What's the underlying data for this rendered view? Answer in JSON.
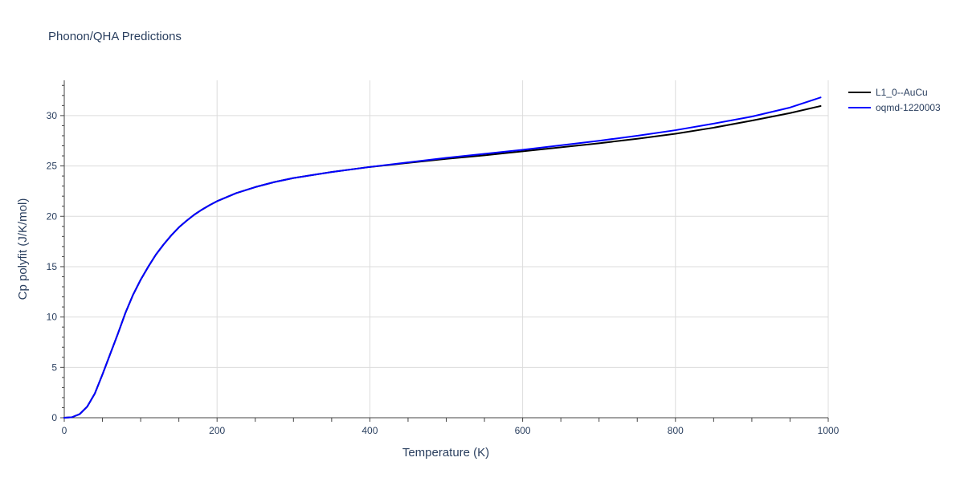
{
  "chart_data": {
    "type": "line",
    "title": "Phonon/QHA Predictions",
    "xlabel": "Temperature (K)",
    "ylabel": "Cp polyfit (J/K/mol)",
    "xlim": [
      0,
      1000
    ],
    "ylim": [
      0,
      33.5
    ],
    "x_ticks": [
      0,
      200,
      400,
      600,
      800,
      1000
    ],
    "y_ticks": [
      0,
      5,
      10,
      15,
      20,
      25,
      30
    ],
    "grid": true,
    "legend_position": "top-right",
    "series": [
      {
        "name": "L1_0--AuCu",
        "color": "#000000",
        "x": [
          0,
          10,
          20,
          30,
          40,
          50,
          60,
          70,
          80,
          90,
          100,
          110,
          120,
          130,
          140,
          150,
          160,
          170,
          180,
          190,
          200,
          225,
          250,
          275,
          300,
          350,
          400,
          450,
          500,
          550,
          600,
          650,
          700,
          750,
          800,
          850,
          900,
          950,
          990
        ],
        "y": [
          0,
          0.05,
          0.35,
          1.1,
          2.4,
          4.3,
          6.3,
          8.3,
          10.4,
          12.2,
          13.7,
          15.0,
          16.2,
          17.2,
          18.1,
          18.9,
          19.55,
          20.15,
          20.65,
          21.1,
          21.5,
          22.3,
          22.9,
          23.4,
          23.8,
          24.4,
          24.9,
          25.3,
          25.7,
          26.05,
          26.45,
          26.85,
          27.25,
          27.7,
          28.2,
          28.8,
          29.5,
          30.25,
          30.95
        ]
      },
      {
        "name": "oqmd-1220003",
        "color": "#0000ff",
        "x": [
          0,
          10,
          20,
          30,
          40,
          50,
          60,
          70,
          80,
          90,
          100,
          110,
          120,
          130,
          140,
          150,
          160,
          170,
          180,
          190,
          200,
          225,
          250,
          275,
          300,
          350,
          400,
          450,
          500,
          550,
          600,
          650,
          700,
          750,
          800,
          850,
          900,
          950,
          990
        ],
        "y": [
          0,
          0.05,
          0.35,
          1.1,
          2.4,
          4.3,
          6.3,
          8.3,
          10.4,
          12.2,
          13.7,
          15.0,
          16.2,
          17.2,
          18.1,
          18.9,
          19.55,
          20.15,
          20.65,
          21.1,
          21.5,
          22.3,
          22.9,
          23.4,
          23.8,
          24.4,
          24.9,
          25.35,
          25.8,
          26.2,
          26.6,
          27.05,
          27.5,
          28.0,
          28.55,
          29.2,
          29.9,
          30.8,
          31.8
        ]
      }
    ]
  }
}
